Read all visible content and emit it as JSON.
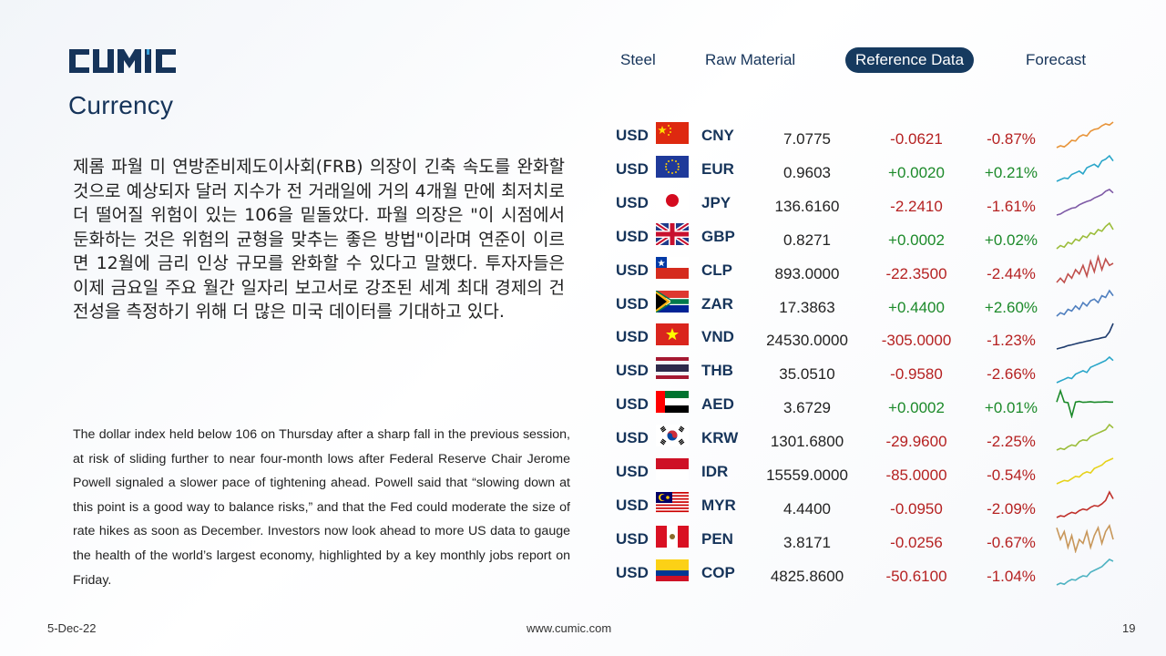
{
  "logo": {
    "text": "CUMIC",
    "color": "#16345a"
  },
  "page_title": "Currency",
  "nav": {
    "items": [
      {
        "label": "Steel",
        "active": false
      },
      {
        "label": "Raw Material",
        "active": false
      },
      {
        "label": "Reference Data",
        "active": true
      },
      {
        "label": "Forecast",
        "active": false
      }
    ]
  },
  "korean_text": "제롬 파월 미 연방준비제도이사회(FRB) 의장이 긴축 속도를 완화할 것으로 예상되자 달러 지수가 전 거래일에 거의 4개월 만에 최저치로 더 떨어질 위험이 있는 106을 밑돌았다. 파월 의장은 \"이 시점에서 둔화하는 것은 위험의 균형을 맞추는 좋은 방법\"이라며 연준이 이르면 12월에 금리 인상 규모를 완화할 수 있다고 말했다. 투자자들은 이제 금요일 주요 월간 일자리 보고서로 강조된 세계 최대 경제의 건전성을 측정하기 위해 더 많은 미국 데이터를 기대하고 있다.",
  "english_text": "The dollar index held below 106 on Thursday after a sharp fall in the previous session, at risk of sliding further to near four-month lows after Federal Reserve Chair Jerome Powell signaled a slower pace of tightening ahead. Powell said that “slowing down at this point is a good way to balance risks,” and that the Fed could moderate the size of rate hikes as soon as December. Investors now look ahead to more US data to gauge the health of the world’s largest economy, highlighted by a key monthly jobs report on Friday.",
  "currencies": [
    {
      "base": "USD",
      "code": "CNY",
      "flag": "china-flag",
      "rate": "7.0775",
      "change": "-0.0621",
      "pct": "-0.87%",
      "dir": "neg",
      "spark_color": "#e8943a",
      "spark": [
        3,
        3.5,
        3.2,
        4,
        5,
        4.8,
        6,
        6.5,
        6.2,
        7.5,
        8,
        8.2,
        9,
        9.5,
        9.2,
        10
      ]
    },
    {
      "base": "USD",
      "code": "EUR",
      "flag": "eu-flag",
      "rate": "0.9603",
      "change": "+0.0020",
      "pct": "+0.21%",
      "dir": "pos",
      "spark_color": "#2aa6c9",
      "spark": [
        2,
        2.5,
        3,
        2.8,
        4,
        4.5,
        5,
        4.2,
        6,
        6.5,
        7,
        6.2,
        8,
        8.5,
        9.5,
        8
      ]
    },
    {
      "base": "USD",
      "code": "JPY",
      "flag": "japan-flag",
      "rate": "136.6160",
      "change": "-2.2410",
      "pct": "-1.61%",
      "dir": "neg",
      "spark_color": "#7e5aa6",
      "spark": [
        2,
        2.3,
        3,
        3.5,
        4,
        4.2,
        5,
        5.5,
        6,
        6.3,
        7,
        7.5,
        8,
        9,
        9.5,
        8.5
      ]
    },
    {
      "base": "USD",
      "code": "GBP",
      "flag": "uk-flag",
      "rate": "0.8271",
      "change": "+0.0002",
      "pct": "+0.02%",
      "dir": "pos",
      "spark_color": "#9bbd3a",
      "spark": [
        2,
        3,
        2.5,
        4,
        3.5,
        5,
        4.5,
        6,
        5.5,
        7,
        6.5,
        8,
        7.5,
        9,
        10,
        8
      ]
    },
    {
      "base": "USD",
      "code": "CLP",
      "flag": "chile-flag",
      "rate": "893.0000",
      "change": "-22.3500",
      "pct": "-2.44%",
      "dir": "neg",
      "spark_color": "#c0504d",
      "spark": [
        3,
        4,
        3,
        5,
        4,
        6,
        5,
        7,
        4.5,
        8,
        5.5,
        9,
        6,
        8.5,
        7,
        7.5
      ]
    },
    {
      "base": "USD",
      "code": "ZAR",
      "flag": "south-africa-flag",
      "rate": "17.3863",
      "change": "+0.4400",
      "pct": "+2.60%",
      "dir": "pos",
      "spark_color": "#4f7fbf",
      "spark": [
        2,
        3,
        2.5,
        4,
        3.5,
        5,
        4,
        6,
        5,
        6.5,
        7,
        6,
        8,
        7.5,
        9.5,
        8
      ]
    },
    {
      "base": "USD",
      "code": "VND",
      "flag": "vietnam-flag",
      "rate": "24530.0000",
      "change": "-305.0000",
      "pct": "-1.23%",
      "dir": "neg",
      "spark_color": "#1f3c6e",
      "spark": [
        2,
        2.3,
        2.6,
        3,
        3.2,
        3.5,
        3.8,
        4,
        4.3,
        4.5,
        4.8,
        5,
        5.3,
        5.5,
        7,
        9.5
      ]
    },
    {
      "base": "USD",
      "code": "THB",
      "flag": "thailand-flag",
      "rate": "35.0510",
      "change": "-0.9580",
      "pct": "-2.66%",
      "dir": "neg",
      "spark_color": "#2aa6c9",
      "spark": [
        2,
        2.5,
        3,
        3.5,
        3.2,
        4.5,
        5,
        5.5,
        5,
        6.5,
        7,
        7.5,
        8,
        8.5,
        9.5,
        8.5
      ]
    },
    {
      "base": "USD",
      "code": "AED",
      "flag": "uae-flag",
      "rate": "3.6729",
      "change": "+0.0002",
      "pct": "+0.01%",
      "dir": "pos",
      "spark_color": "#1c8a2a",
      "spark": [
        6,
        9.5,
        6,
        5.8,
        1.5,
        6,
        6.2,
        5.9,
        6,
        6.1,
        5.9,
        6,
        6,
        6.1,
        6,
        6
      ]
    },
    {
      "base": "USD",
      "code": "KRW",
      "flag": "korea-flag",
      "rate": "1301.6800",
      "change": "-29.9600",
      "pct": "-2.25%",
      "dir": "neg",
      "spark_color": "#9bbd3a",
      "spark": [
        2,
        2.5,
        2.2,
        3,
        3.5,
        3.2,
        4.5,
        5,
        4.8,
        6,
        6.5,
        7,
        7.5,
        8,
        9.5,
        8.5
      ]
    },
    {
      "base": "USD",
      "code": "IDR",
      "flag": "indonesia-flag",
      "rate": "15559.0000",
      "change": "-85.0000",
      "pct": "-0.54%",
      "dir": "neg",
      "spark_color": "#e6d21a",
      "spark": [
        2,
        2.5,
        3,
        2.8,
        3.5,
        4.2,
        4,
        5,
        5.5,
        5.2,
        6.5,
        7,
        7.5,
        8.5,
        9,
        9.5
      ]
    },
    {
      "base": "USD",
      "code": "MYR",
      "flag": "malaysia-flag",
      "rate": "4.4400",
      "change": "-0.0950",
      "pct": "-2.09%",
      "dir": "neg",
      "spark_color": "#c0302a",
      "spark": [
        2,
        2.5,
        2.3,
        3,
        3.5,
        3.2,
        4,
        4.5,
        4.2,
        5,
        5.5,
        5.3,
        6,
        7,
        9.5,
        7.5
      ]
    },
    {
      "base": "USD",
      "code": "PEN",
      "flag": "peru-flag",
      "rate": "3.8171",
      "change": "-0.0256",
      "pct": "-0.67%",
      "dir": "neg",
      "spark_color": "#c8975a",
      "spark": [
        9,
        6,
        8,
        4,
        7,
        3,
        6,
        5,
        8,
        4,
        7,
        9,
        5,
        8,
        9.5,
        6
      ]
    },
    {
      "base": "USD",
      "code": "COP",
      "flag": "colombia-flag",
      "rate": "4825.8600",
      "change": "-50.6100",
      "pct": "-1.04%",
      "dir": "neg",
      "spark_color": "#4fb3c2",
      "spark": [
        2,
        2.5,
        2.2,
        3,
        3.5,
        3.3,
        4,
        4.5,
        4.3,
        5.5,
        6,
        6.5,
        7,
        8,
        9,
        8.5
      ]
    }
  ],
  "footer": {
    "date": "5-Dec-22",
    "website": "www.cumic.com",
    "page_number": "19"
  }
}
